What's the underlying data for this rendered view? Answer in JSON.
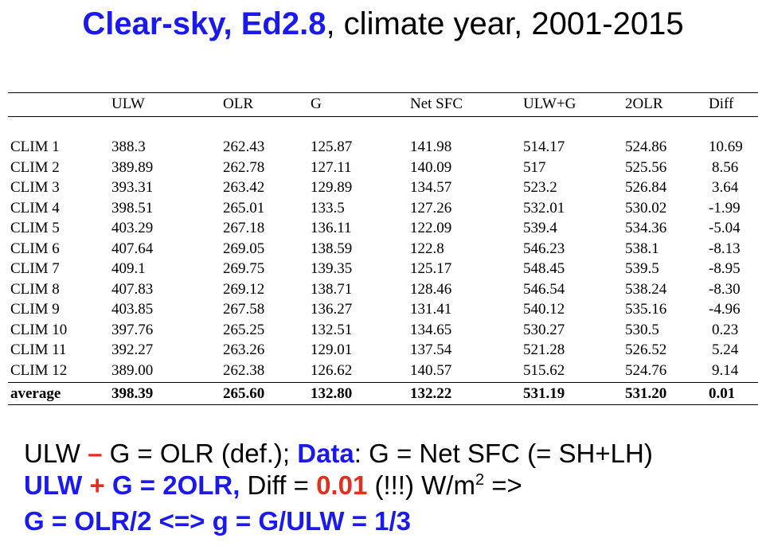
{
  "title": {
    "bold_part": "Clear-sky, Ed2.8",
    "rest": ", climate year, 2001-2015"
  },
  "table": {
    "headers": [
      "",
      "ULW",
      "OLR",
      "G",
      "Net SFC",
      "ULW+G",
      "2OLR",
      "Diff"
    ],
    "rows": [
      [
        "CLIM 1",
        "388.3",
        "262.43",
        "125.87",
        "141.98",
        "514.17",
        "524.86",
        "10.69"
      ],
      [
        "CLIM 2",
        "389.89",
        "262.78",
        "127.11",
        "140.09",
        "517",
        "525.56",
        "8.56"
      ],
      [
        "CLIM 3",
        "393.31",
        "263.42",
        "129.89",
        "134.57",
        "523.2",
        "526.84",
        "3.64"
      ],
      [
        "CLIM 4",
        "398.51",
        "265.01",
        "133.5",
        "127.26",
        "532.01",
        "530.02",
        "-1.99"
      ],
      [
        "CLIM 5",
        "403.29",
        "267.18",
        "136.11",
        "122.09",
        "539.4",
        "534.36",
        "-5.04"
      ],
      [
        "CLIM 6",
        "407.64",
        "269.05",
        "138.59",
        "122.8",
        "546.23",
        "538.1",
        "-8.13"
      ],
      [
        "CLIM 7",
        "409.1",
        "269.75",
        "139.35",
        "125.17",
        "548.45",
        "539.5",
        "-8.95"
      ],
      [
        "CLIM 8",
        "407.83",
        "269.12",
        "138.71",
        "128.46",
        "546.54",
        "538.24",
        "-8.30"
      ],
      [
        "CLIM 9",
        "403.85",
        "267.58",
        "136.27",
        "131.41",
        "540.12",
        "535.16",
        "-4.96"
      ],
      [
        "CLIM 10",
        "397.76",
        "265.25",
        "132.51",
        "134.65",
        "530.27",
        "530.5",
        "0.23"
      ],
      [
        "CLIM 11",
        "392.27",
        "263.26",
        "129.01",
        "137.54",
        "521.28",
        "526.52",
        "5.24"
      ],
      [
        "CLIM 12",
        "389.00",
        "262.38",
        "126.62",
        "140.57",
        "515.62",
        "524.76",
        "9.14"
      ]
    ],
    "average": [
      "average",
      "398.39",
      "265.60",
      "132.80",
      "132.22",
      "531.19",
      "531.20",
      "0.01"
    ]
  },
  "lines": {
    "l1_a": "ULW ",
    "l1_minus": "–",
    "l1_b": " G = OLR (def.); ",
    "l1_data": "Data",
    "l1_c": ": G = Net SFC (= SH+LH)",
    "l2_a": "ULW ",
    "l2_plus": "+",
    "l2_b": " G = 2OLR,",
    "l2_c": " Diff = ",
    "l2_val": "0.01",
    "l2_d": " (!!!) W/m",
    "l2_sup": "2",
    "l2_e": " =>",
    "l3": "G = OLR/2 <=> g = G/ULW = 1/3"
  }
}
